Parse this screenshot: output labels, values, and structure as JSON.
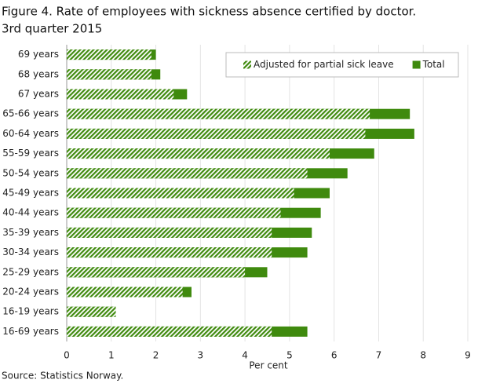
{
  "chart_data": {
    "type": "bar",
    "orientation": "horizontal",
    "overlap": true,
    "title": "Figure 4. Rate of employees with sickness absence certified by doctor.",
    "subtitle": "3rd quarter 2015",
    "x_label": "Per cent",
    "source": "Source: Statistics Norway.",
    "categories": [
      "69 years",
      "68 years",
      "67 years",
      "65-66 years",
      "60-64 years",
      "55-59 years",
      "50-54 years",
      "45-49 years",
      "40-44 years",
      "35-39 years",
      "30-34 years",
      "25-29 years",
      "20-24 years",
      "16-19 years",
      "16-69 years"
    ],
    "series": [
      {
        "name": "Adjusted for partial sick leave",
        "color": "#3f8a0e",
        "pattern": "hatch",
        "values": [
          1.9,
          1.9,
          2.4,
          6.8,
          6.7,
          5.9,
          5.4,
          5.1,
          4.8,
          4.6,
          4.6,
          4.0,
          2.6,
          1.1,
          4.6
        ]
      },
      {
        "name": "Total",
        "color": "#3f8a0e",
        "pattern": "solid",
        "values": [
          2.0,
          2.1,
          2.7,
          7.7,
          7.8,
          6.9,
          6.3,
          5.9,
          5.7,
          5.5,
          5.4,
          4.5,
          2.8,
          1.1,
          5.4
        ]
      }
    ],
    "xlim": [
      0,
      9
    ],
    "xticks": [
      0,
      1,
      2,
      3,
      4,
      5,
      6,
      7,
      8,
      9
    ],
    "grid": true,
    "legend": "upper right"
  }
}
